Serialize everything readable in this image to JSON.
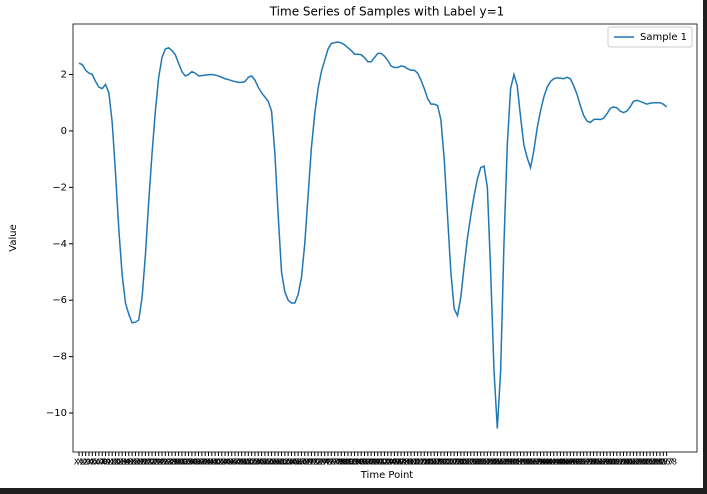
{
  "chart_data": {
    "type": "line",
    "title": "Time Series of Samples with Label y=1",
    "x_label": "Time Point",
    "y_label": "Value",
    "categories": [
      "X1",
      "X2",
      "X3",
      "X4",
      "X5",
      "X6",
      "X7",
      "X8",
      "X9",
      "X10",
      "X11",
      "X12",
      "X13",
      "X14",
      "X15",
      "X16",
      "X17",
      "X18",
      "X19",
      "X20",
      "X21",
      "X22",
      "X23",
      "X24",
      "X25",
      "X26",
      "X27",
      "X28",
      "X29",
      "X30",
      "X31",
      "X32",
      "X33",
      "X34",
      "X35",
      "X36",
      "X37",
      "X38",
      "X39",
      "X40",
      "X41",
      "X42",
      "X43",
      "X44",
      "X45",
      "X46",
      "X47",
      "X48",
      "X49",
      "X50",
      "X51",
      "X52",
      "X53",
      "X54",
      "X55",
      "X56",
      "X57",
      "X58",
      "X59",
      "X60",
      "X61",
      "X62",
      "X63",
      "X64",
      "X65",
      "X66",
      "X67",
      "X68",
      "X69",
      "X70",
      "X71",
      "X72",
      "X73",
      "X74",
      "X75",
      "X76",
      "X77",
      "X78",
      "X79",
      "X80",
      "X81",
      "X82",
      "X83",
      "X84",
      "X85",
      "X86",
      "X87",
      "X88",
      "X89",
      "X90",
      "X91",
      "X92",
      "X93",
      "X94",
      "X95",
      "X96",
      "X97",
      "X98",
      "X99",
      "X100",
      "X101",
      "X102",
      "X103",
      "X104",
      "X105",
      "X106",
      "X107",
      "X108",
      "X109",
      "X110",
      "X111",
      "X112",
      "X113",
      "X114",
      "X115",
      "X116",
      "X117",
      "X118",
      "X119",
      "X120",
      "X121",
      "X122",
      "X123",
      "X124",
      "X125",
      "X126",
      "X127",
      "X128",
      "X129",
      "X130",
      "X131",
      "X132",
      "X133",
      "X134",
      "X135",
      "X136",
      "X137",
      "X138",
      "X139",
      "X140",
      "X141",
      "X142",
      "X143",
      "X144",
      "X145",
      "X146",
      "X147",
      "X148",
      "X149",
      "X150",
      "X151",
      "X152",
      "X153",
      "X154",
      "X155",
      "X156",
      "X157",
      "X158",
      "X159",
      "X160",
      "X161",
      "X162",
      "X163",
      "X164",
      "X165",
      "X166",
      "X167",
      "X168",
      "X169",
      "X170",
      "X171",
      "X172",
      "X173",
      "X174",
      "X175",
      "X176",
      "X177",
      "X178"
    ],
    "series": [
      {
        "name": "Sample 1",
        "color": "#1f77b4",
        "values": [
          2.4,
          2.35,
          2.15,
          2.05,
          2.0,
          1.75,
          1.55,
          1.5,
          1.65,
          1.35,
          0.3,
          -1.5,
          -3.5,
          -5.1,
          -6.1,
          -6.5,
          -6.8,
          -6.78,
          -6.7,
          -5.9,
          -4.4,
          -2.5,
          -0.8,
          0.7,
          1.9,
          2.6,
          2.9,
          2.95,
          2.85,
          2.7,
          2.4,
          2.1,
          1.95,
          2.0,
          2.1,
          2.05,
          1.95,
          1.96,
          1.98,
          1.99,
          2.0,
          1.98,
          1.95,
          1.9,
          1.85,
          1.82,
          1.78,
          1.75,
          1.72,
          1.72,
          1.75,
          1.9,
          1.95,
          1.8,
          1.55,
          1.35,
          1.2,
          1.05,
          0.7,
          -0.8,
          -3.0,
          -5.0,
          -5.7,
          -6.0,
          -6.1,
          -6.1,
          -5.8,
          -5.2,
          -4.0,
          -2.3,
          -0.6,
          0.6,
          1.5,
          2.1,
          2.5,
          2.9,
          3.1,
          3.13,
          3.15,
          3.12,
          3.05,
          2.95,
          2.85,
          2.72,
          2.72,
          2.7,
          2.6,
          2.45,
          2.45,
          2.6,
          2.75,
          2.75,
          2.65,
          2.5,
          2.3,
          2.25,
          2.25,
          2.3,
          2.28,
          2.2,
          2.15,
          2.15,
          2.05,
          1.8,
          1.5,
          1.15,
          0.95,
          0.95,
          0.9,
          0.4,
          -1.0,
          -3.0,
          -5.0,
          -6.3,
          -6.55,
          -5.9,
          -4.8,
          -3.8,
          -3.0,
          -2.3,
          -1.7,
          -1.3,
          -1.25,
          -2.0,
          -5.0,
          -8.5,
          -10.55,
          -8.5,
          -4.0,
          -0.5,
          1.5,
          2.0,
          1.6,
          0.5,
          -0.5,
          -0.95,
          -1.3,
          -0.7,
          0.1,
          0.7,
          1.2,
          1.55,
          1.75,
          1.85,
          1.88,
          1.87,
          1.85,
          1.9,
          1.85,
          1.6,
          1.3,
          0.9,
          0.55,
          0.35,
          0.3,
          0.4,
          0.42,
          0.4,
          0.45,
          0.6,
          0.8,
          0.85,
          0.82,
          0.7,
          0.65,
          0.7,
          0.85,
          1.05,
          1.08,
          1.05,
          1.0,
          0.95,
          0.98,
          1.0,
          1.0,
          1.0,
          0.95,
          0.85
        ]
      }
    ],
    "ylim": [
      -11.38,
      3.79
    ],
    "yticks": [
      {
        "value": -10,
        "label": "−10"
      },
      {
        "value": -8,
        "label": "−8"
      },
      {
        "value": -6,
        "label": "−6"
      },
      {
        "value": -4,
        "label": "−4"
      },
      {
        "value": -2,
        "label": "−2"
      },
      0,
      2
    ],
    "grid": false,
    "legend": "upper right"
  }
}
